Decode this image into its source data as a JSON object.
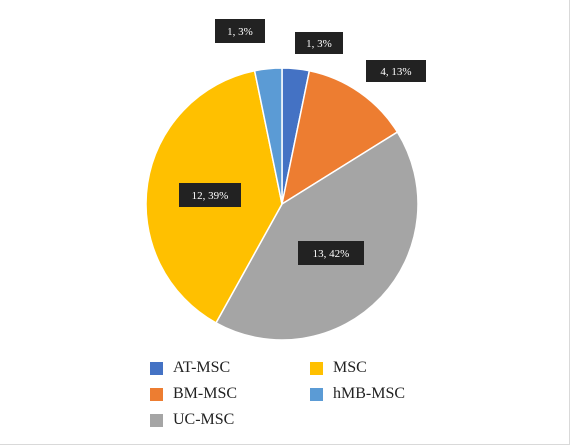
{
  "chart_data": {
    "type": "pie",
    "categories": [
      "AT-MSC",
      "BM-MSC",
      "UC-MSC",
      "MSC",
      "hMB-MSC"
    ],
    "values": [
      1,
      4,
      13,
      12,
      1
    ],
    "percentages": [
      3,
      13,
      42,
      39,
      3
    ],
    "data_labels": [
      "1, 3%",
      "4, 13%",
      "13, 42%",
      "12, 39%",
      "1, 3%"
    ],
    "colors": [
      "#4472c4",
      "#ed7d31",
      "#a5a5a5",
      "#ffc000",
      "#5b9bd5"
    ],
    "start_angle_deg": 0,
    "direction": "clockwise",
    "legend": {
      "position": "bottom",
      "order": [
        "AT-MSC",
        "MSC",
        "BM-MSC",
        "hMB-MSC",
        "UC-MSC"
      ]
    },
    "title": "",
    "label_style": {
      "background": "#222222",
      "text_color": "#ffffff"
    }
  }
}
